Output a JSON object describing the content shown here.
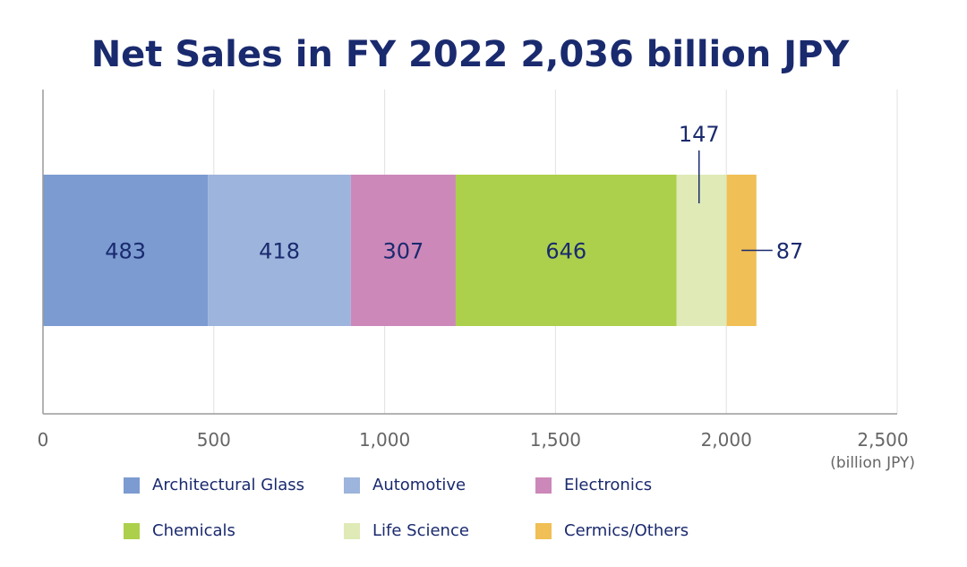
{
  "chart_data": {
    "type": "bar",
    "orientation": "horizontal-stacked",
    "title": "Net Sales in FY 2022 2,036 billion JPY",
    "unit_label": "(billion JPY)",
    "xlim": [
      0,
      2500
    ],
    "x_ticks": [
      0,
      500,
      1000,
      1500,
      2000,
      2500
    ],
    "x_tick_labels": [
      "0",
      "500",
      "1,000",
      "1,500",
      "2,000",
      "2,500"
    ],
    "grid": true,
    "series": [
      {
        "name": "Architectural Glass",
        "value": 483,
        "label": "483",
        "color": "#7b9bd1"
      },
      {
        "name": "Automotive",
        "value": 418,
        "label": "418",
        "color": "#9db4dc"
      },
      {
        "name": "Electronics",
        "value": 307,
        "label": "307",
        "color": "#cc88b9"
      },
      {
        "name": "Chemicals",
        "value": 646,
        "label": "646",
        "color": "#acd04b"
      },
      {
        "name": "Life Science",
        "value": 147,
        "label": "147",
        "color": "#dfeab6"
      },
      {
        "name": "Cermics/Others",
        "value": 87,
        "label": "87",
        "color": "#f0bf55"
      }
    ],
    "legend_position": "bottom"
  },
  "colors": {
    "text": "#1a2a6e",
    "axis_text": "#666666",
    "grid": "#e2e2e2"
  }
}
